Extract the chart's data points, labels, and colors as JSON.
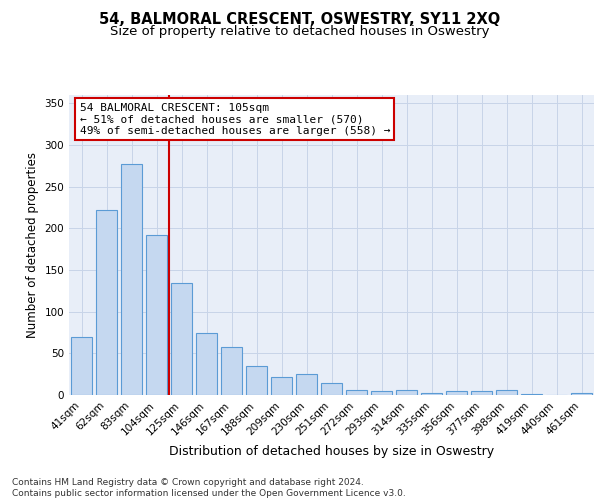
{
  "title": "54, BALMORAL CRESCENT, OSWESTRY, SY11 2XQ",
  "subtitle": "Size of property relative to detached houses in Oswestry",
  "xlabel": "Distribution of detached houses by size in Oswestry",
  "ylabel": "Number of detached properties",
  "categories": [
    "41sqm",
    "62sqm",
    "83sqm",
    "104sqm",
    "125sqm",
    "146sqm",
    "167sqm",
    "188sqm",
    "209sqm",
    "230sqm",
    "251sqm",
    "272sqm",
    "293sqm",
    "314sqm",
    "335sqm",
    "356sqm",
    "377sqm",
    "398sqm",
    "419sqm",
    "440sqm",
    "461sqm"
  ],
  "values": [
    70,
    222,
    277,
    192,
    134,
    75,
    58,
    35,
    22,
    25,
    14,
    6,
    5,
    6,
    3,
    5,
    5,
    6,
    1,
    0,
    2
  ],
  "bar_color": "#c5d8f0",
  "bar_edge_color": "#5b9bd5",
  "bar_linewidth": 0.8,
  "grid_color": "#c8d4e8",
  "bg_color": "#e8eef8",
  "annotation_text": "54 BALMORAL CRESCENT: 105sqm\n← 51% of detached houses are smaller (570)\n49% of semi-detached houses are larger (558) →",
  "annotation_box_color": "#ffffff",
  "annotation_box_edge_color": "#cc0000",
  "vline_x": 3.5,
  "vline_color": "#cc0000",
  "ylim": [
    0,
    360
  ],
  "yticks": [
    0,
    50,
    100,
    150,
    200,
    250,
    300,
    350
  ],
  "footer": "Contains HM Land Registry data © Crown copyright and database right 2024.\nContains public sector information licensed under the Open Government Licence v3.0.",
  "title_fontsize": 10.5,
  "subtitle_fontsize": 9.5,
  "xlabel_fontsize": 9,
  "ylabel_fontsize": 8.5,
  "tick_fontsize": 7.5,
  "annotation_fontsize": 8,
  "footer_fontsize": 6.5
}
